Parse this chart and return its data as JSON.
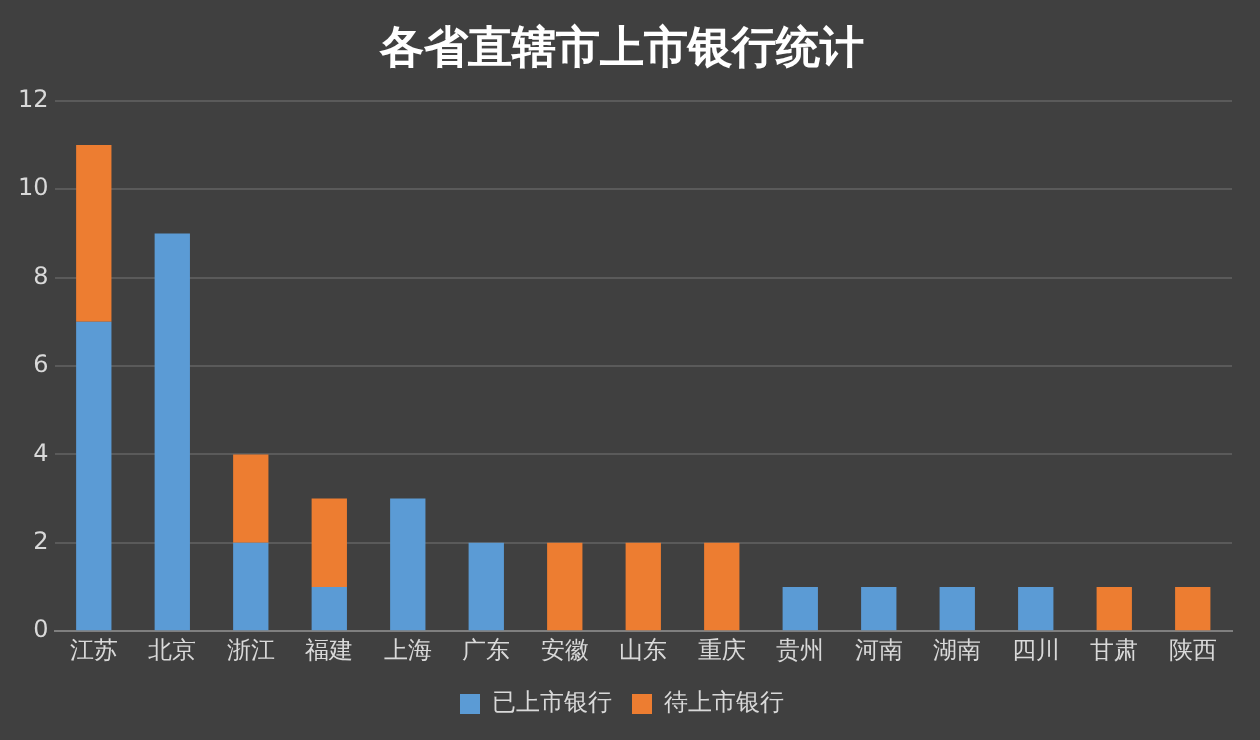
{
  "chart_data": {
    "type": "bar",
    "title": "各省直辖市上市银行统计",
    "stacked": true,
    "categories": [
      "江苏",
      "北京",
      "浙江",
      "福建",
      "上海",
      "广东",
      "安徽",
      "山东",
      "重庆",
      "贵州",
      "河南",
      "湖南",
      "四川",
      "甘肃",
      "陕西"
    ],
    "series": [
      {
        "name": "已上市银行",
        "color": "#5b9bd5",
        "values": [
          7,
          9,
          2,
          1,
          3,
          2,
          0,
          0,
          0,
          1,
          1,
          1,
          1,
          0,
          0
        ]
      },
      {
        "name": "待上市银行",
        "color": "#ed7d31",
        "values": [
          4,
          0,
          2,
          2,
          0,
          0,
          2,
          2,
          2,
          0,
          0,
          0,
          0,
          1,
          1
        ]
      }
    ],
    "ylim": [
      0,
      12
    ],
    "yticks": [
      0,
      2,
      4,
      6,
      8,
      10,
      12
    ],
    "grid": "y",
    "legend": "bottom"
  }
}
